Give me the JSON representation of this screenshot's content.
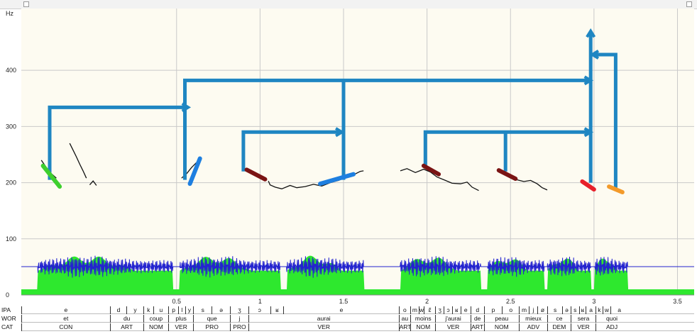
{
  "axis": {
    "y_unit": "Hz",
    "y_ticks": [
      "400",
      "300",
      "200",
      "100",
      "0"
    ],
    "y_tick_values": [
      400,
      300,
      200,
      100,
      0
    ],
    "x_ticks": [
      "0.5",
      "1",
      "1.5",
      "2",
      "2.5",
      "3",
      "3.5"
    ],
    "x_tick_values": [
      0.5,
      1,
      1.5,
      2,
      2.5,
      3,
      3.5
    ],
    "x_range": [
      -0.43,
      3.6
    ],
    "y_range": [
      0,
      510
    ]
  },
  "tiers": {
    "labels": [
      "IPA",
      "WOR",
      "CAT"
    ],
    "ipa": [
      {
        "t0": -0.43,
        "t1": 0.1,
        "text": "e"
      },
      {
        "t0": 0.1,
        "t1": 0.2,
        "text": "d"
      },
      {
        "t0": 0.2,
        "t1": 0.3,
        "text": "y"
      },
      {
        "t0": 0.3,
        "t1": 0.36,
        "text": "k"
      },
      {
        "t0": 0.36,
        "t1": 0.45,
        "text": "u"
      },
      {
        "t0": 0.45,
        "t1": 0.51,
        "text": "p"
      },
      {
        "t0": 0.51,
        "t1": 0.55,
        "text": "l"
      },
      {
        "t0": 0.55,
        "t1": 0.6,
        "text": "y"
      },
      {
        "t0": 0.6,
        "t1": 0.71,
        "text": "s"
      },
      {
        "t0": 0.71,
        "t1": 0.82,
        "text": "ə"
      },
      {
        "t0": 0.82,
        "t1": 0.93,
        "text": "ʒ"
      },
      {
        "t0": 0.93,
        "t1": 1.06,
        "text": "ɔ"
      },
      {
        "t0": 1.06,
        "t1": 1.14,
        "text": "ʁ"
      },
      {
        "t0": 1.14,
        "t1": 1.83,
        "text": "e"
      },
      {
        "t0": 1.83,
        "t1": 1.9,
        "text": "o"
      },
      {
        "t0": 1.9,
        "t1": 1.95,
        "text": "m"
      },
      {
        "t0": 1.95,
        "t1": 1.98,
        "text": "w"
      },
      {
        "t0": 1.98,
        "t1": 2.05,
        "text": "ɛ̃"
      },
      {
        "t0": 2.05,
        "t1": 2.1,
        "text": "ʒ"
      },
      {
        "t0": 2.1,
        "t1": 2.15,
        "text": "ɔ"
      },
      {
        "t0": 2.15,
        "t1": 2.2,
        "text": "ʁ"
      },
      {
        "t0": 2.2,
        "t1": 2.26,
        "text": "e"
      },
      {
        "t0": 2.26,
        "t1": 2.34,
        "text": "d"
      },
      {
        "t0": 2.34,
        "t1": 2.45,
        "text": "p"
      },
      {
        "t0": 2.45,
        "t1": 2.55,
        "text": "o"
      },
      {
        "t0": 2.55,
        "t1": 2.61,
        "text": "m"
      },
      {
        "t0": 2.61,
        "t1": 2.66,
        "text": "j"
      },
      {
        "t0": 2.66,
        "t1": 2.72,
        "text": "ø"
      },
      {
        "t0": 2.72,
        "t1": 2.81,
        "text": "s"
      },
      {
        "t0": 2.81,
        "t1": 2.86,
        "text": "ə"
      },
      {
        "t0": 2.86,
        "t1": 2.91,
        "text": "s"
      },
      {
        "t0": 2.91,
        "t1": 2.95,
        "text": "ʁ"
      },
      {
        "t0": 2.95,
        "t1": 3.01,
        "text": "a"
      },
      {
        "t0": 3.01,
        "t1": 3.05,
        "text": "k"
      },
      {
        "t0": 3.05,
        "t1": 3.1,
        "text": "w"
      },
      {
        "t0": 3.1,
        "t1": 3.2,
        "text": "a"
      }
    ],
    "wor": [
      {
        "t0": -0.43,
        "t1": 0.1,
        "text": "et"
      },
      {
        "t0": 0.1,
        "t1": 0.3,
        "text": "du"
      },
      {
        "t0": 0.3,
        "t1": 0.45,
        "text": "coup"
      },
      {
        "t0": 0.45,
        "t1": 0.6,
        "text": "plus"
      },
      {
        "t0": 0.6,
        "t1": 0.82,
        "text": "que"
      },
      {
        "t0": 0.82,
        "t1": 0.93,
        "text": "j"
      },
      {
        "t0": 0.93,
        "t1": 1.83,
        "text": "aurai"
      },
      {
        "t0": 1.83,
        "t1": 1.9,
        "text": "au"
      },
      {
        "t0": 1.9,
        "t1": 2.05,
        "text": "moins"
      },
      {
        "t0": 2.05,
        "t1": 2.26,
        "text": "j'aurai"
      },
      {
        "t0": 2.26,
        "t1": 2.34,
        "text": "de"
      },
      {
        "t0": 2.34,
        "t1": 2.55,
        "text": "peau"
      },
      {
        "t0": 2.55,
        "t1": 2.72,
        "text": "mieux"
      },
      {
        "t0": 2.72,
        "t1": 2.86,
        "text": "ce"
      },
      {
        "t0": 2.86,
        "t1": 3.01,
        "text": "sera"
      },
      {
        "t0": 3.01,
        "t1": 3.2,
        "text": "quoi"
      }
    ],
    "cat": [
      {
        "t0": -0.43,
        "t1": 0.1,
        "text": "CON"
      },
      {
        "t0": 0.1,
        "t1": 0.3,
        "text": "ART"
      },
      {
        "t0": 0.3,
        "t1": 0.45,
        "text": "NOM"
      },
      {
        "t0": 0.45,
        "t1": 0.6,
        "text": "VER"
      },
      {
        "t0": 0.6,
        "t1": 0.82,
        "text": "PRO"
      },
      {
        "t0": 0.82,
        "t1": 0.93,
        "text": "PRO"
      },
      {
        "t0": 0.93,
        "t1": 1.83,
        "text": "VER"
      },
      {
        "t0": 1.83,
        "t1": 1.9,
        "text": "ART"
      },
      {
        "t0": 1.9,
        "t1": 2.05,
        "text": "NOM"
      },
      {
        "t0": 2.05,
        "t1": 2.26,
        "text": "VER"
      },
      {
        "t0": 2.26,
        "t1": 2.34,
        "text": "ART"
      },
      {
        "t0": 2.34,
        "t1": 2.55,
        "text": "NOM"
      },
      {
        "t0": 2.55,
        "t1": 2.72,
        "text": "ADV"
      },
      {
        "t0": 2.72,
        "t1": 2.86,
        "text": "DEM"
      },
      {
        "t0": 2.86,
        "t1": 3.01,
        "text": "VER"
      },
      {
        "t0": 3.01,
        "t1": 3.2,
        "text": "ADJ"
      }
    ]
  },
  "colors": {
    "plot_bg": "#fdfbf1",
    "grid": "#c9c9c9",
    "pitch_curve": "#111111",
    "arrow": "#1f86c2",
    "intensity": "#2ee82e",
    "waveform": "#2323cf",
    "stylized": {
      "green": "#3ecf2e",
      "blue": "#1e7fe0",
      "darkred": "#7a1414",
      "red": "#e8202a",
      "orange": "#f39a2a"
    }
  },
  "stylized_segments": [
    {
      "color": "green",
      "t0": -0.3,
      "f0": 230,
      "t1": -0.2,
      "f1": 193
    },
    {
      "color": "blue",
      "t0": 0.58,
      "f0": 198,
      "t1": 0.64,
      "f1": 243
    },
    {
      "color": "darkred",
      "t0": 0.92,
      "f0": 223,
      "t1": 1.03,
      "f1": 206
    },
    {
      "color": "blue",
      "t0": 1.36,
      "f0": 198,
      "t1": 1.56,
      "f1": 215
    },
    {
      "color": "darkred",
      "t0": 1.98,
      "f0": 230,
      "t1": 2.07,
      "f1": 215
    },
    {
      "color": "darkred",
      "t0": 2.43,
      "f0": 222,
      "t1": 2.53,
      "f1": 207
    },
    {
      "color": "red",
      "t0": 2.93,
      "f0": 202,
      "t1": 3.0,
      "f1": 188
    },
    {
      "color": "orange",
      "t0": 3.09,
      "f0": 193,
      "t1": 3.17,
      "f1": 183
    }
  ],
  "pitch_curves": [
    [
      [
        -0.31,
        240
      ],
      [
        -0.28,
        227
      ],
      [
        -0.25,
        216
      ],
      [
        -0.22,
        208
      ]
    ],
    [
      [
        -0.14,
        270
      ],
      [
        -0.12,
        258
      ],
      [
        -0.1,
        246
      ],
      [
        -0.08,
        233
      ],
      [
        -0.06,
        221
      ],
      [
        -0.04,
        208
      ]
    ],
    [
      [
        -0.02,
        196
      ],
      [
        0.0,
        203
      ],
      [
        0.02,
        195
      ]
    ],
    [
      [
        0.53,
        208
      ],
      [
        0.56,
        216
      ],
      [
        0.59,
        227
      ],
      [
        0.62,
        236
      ]
    ],
    [
      [
        1.05,
        203
      ],
      [
        1.06,
        196
      ],
      [
        1.09,
        192
      ],
      [
        1.13,
        189
      ],
      [
        1.18,
        195
      ],
      [
        1.22,
        191
      ],
      [
        1.27,
        193
      ],
      [
        1.32,
        197
      ],
      [
        1.37,
        194
      ],
      [
        1.42,
        200
      ],
      [
        1.47,
        204
      ],
      [
        1.52,
        210
      ],
      [
        1.56,
        214
      ],
      [
        1.6,
        220
      ],
      [
        1.62,
        221
      ]
    ],
    [
      [
        1.84,
        221
      ],
      [
        1.88,
        225
      ],
      [
        1.93,
        218
      ],
      [
        1.98,
        224
      ],
      [
        2.02,
        219
      ],
      [
        2.06,
        210
      ],
      [
        2.11,
        204
      ],
      [
        2.15,
        199
      ],
      [
        2.2,
        198
      ],
      [
        2.24,
        201
      ],
      [
        2.27,
        192
      ],
      [
        2.31,
        186
      ]
    ],
    [
      [
        2.5,
        208
      ],
      [
        2.54,
        205
      ],
      [
        2.58,
        202
      ],
      [
        2.62,
        204
      ],
      [
        2.66,
        198
      ],
      [
        2.69,
        191
      ],
      [
        2.72,
        187
      ]
    ]
  ],
  "arrows": [
    {
      "path": [
        [
          -0.26,
          205
        ],
        [
          -0.26,
          334
        ],
        [
          0.57,
          334
        ]
      ],
      "head": true
    },
    {
      "path": [
        [
          0.55,
          205
        ],
        [
          0.55,
          382
        ],
        [
          2.98,
          382
        ]
      ],
      "head": true
    },
    {
      "path": [
        [
          1.5,
          205
        ],
        [
          1.5,
          382
        ]
      ],
      "head": false
    },
    {
      "path": [
        [
          0.9,
          220
        ],
        [
          0.9,
          290
        ],
        [
          1.49,
          290
        ]
      ],
      "head": true
    },
    {
      "path": [
        [
          1.99,
          230
        ],
        [
          1.99,
          290
        ],
        [
          2.98,
          290
        ]
      ],
      "head": true
    },
    {
      "path": [
        [
          2.47,
          220
        ],
        [
          2.47,
          290
        ]
      ],
      "head": false
    },
    {
      "path": [
        [
          2.98,
          200
        ],
        [
          2.98,
          470
        ]
      ],
      "head": true
    },
    {
      "path": [
        [
          3.13,
          190
        ],
        [
          3.13,
          428
        ],
        [
          2.99,
          428
        ]
      ],
      "head": true
    }
  ]
}
